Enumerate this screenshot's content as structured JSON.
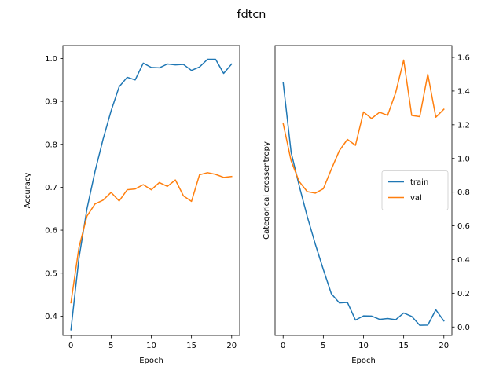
{
  "figure": {
    "suptitle": "fdtcn"
  },
  "chart_data": [
    {
      "type": "line",
      "title": "",
      "xlabel": "Epoch",
      "ylabel": "Accuracy",
      "xlim": [
        -1,
        21
      ],
      "ylim": [
        0.355,
        1.03
      ],
      "xticks": [
        0,
        5,
        10,
        15,
        20
      ],
      "yticks": [
        0.4,
        0.5,
        0.6,
        0.7,
        0.8,
        0.9,
        1.0
      ],
      "ytick_labels": [
        "0.4",
        "0.5",
        "0.6",
        "0.7",
        "0.8",
        "0.9",
        "1.0"
      ],
      "y_axis_side": "left",
      "grid": false,
      "x": [
        0,
        1,
        2,
        3,
        4,
        5,
        6,
        7,
        8,
        9,
        10,
        11,
        12,
        13,
        14,
        15,
        16,
        17,
        18,
        19,
        20
      ],
      "series": [
        {
          "color": "#1f77b4",
          "values": [
            0.368,
            0.535,
            0.65,
            0.737,
            0.812,
            0.878,
            0.934,
            0.956,
            0.95,
            0.989,
            0.979,
            0.978,
            0.987,
            0.985,
            0.986,
            0.972,
            0.98,
            0.998,
            0.998,
            0.965,
            0.987
          ]
        },
        {
          "color": "#ff7f0e",
          "values": [
            0.431,
            0.56,
            0.633,
            0.661,
            0.67,
            0.688,
            0.668,
            0.694,
            0.696,
            0.706,
            0.694,
            0.711,
            0.702,
            0.717,
            0.68,
            0.667,
            0.729,
            0.734,
            0.73,
            0.723,
            0.725
          ]
        }
      ]
    },
    {
      "type": "line",
      "title": "",
      "xlabel": "Epoch",
      "ylabel": "Categorical crossentropy",
      "xlim": [
        -1,
        21
      ],
      "ylim": [
        -0.05,
        1.67
      ],
      "xticks": [
        0,
        5,
        10,
        15,
        20
      ],
      "yticks": [
        0.0,
        0.2,
        0.4,
        0.6,
        0.8,
        1.0,
        1.2,
        1.4,
        1.6
      ],
      "ytick_labels": [
        "0.0",
        "0.2",
        "0.4",
        "0.6",
        "0.8",
        "1.0",
        "1.2",
        "1.4",
        "1.6"
      ],
      "y_axis_side": "right",
      "grid": false,
      "legend": "center-right",
      "x": [
        0,
        1,
        2,
        3,
        4,
        5,
        6,
        7,
        8,
        9,
        10,
        11,
        12,
        13,
        14,
        15,
        16,
        17,
        18,
        19,
        20
      ],
      "series": [
        {
          "name": "train",
          "color": "#1f77b4",
          "values": [
            1.452,
            1.035,
            0.838,
            0.656,
            0.492,
            0.341,
            0.197,
            0.143,
            0.146,
            0.041,
            0.066,
            0.065,
            0.045,
            0.05,
            0.043,
            0.083,
            0.063,
            0.01,
            0.011,
            0.102,
            0.036
          ]
        },
        {
          "name": "val",
          "color": "#ff7f0e",
          "values": [
            1.208,
            0.985,
            0.863,
            0.803,
            0.794,
            0.82,
            0.936,
            1.047,
            1.113,
            1.078,
            1.276,
            1.237,
            1.274,
            1.256,
            1.39,
            1.584,
            1.255,
            1.248,
            1.5,
            1.245,
            1.292
          ]
        }
      ]
    }
  ]
}
